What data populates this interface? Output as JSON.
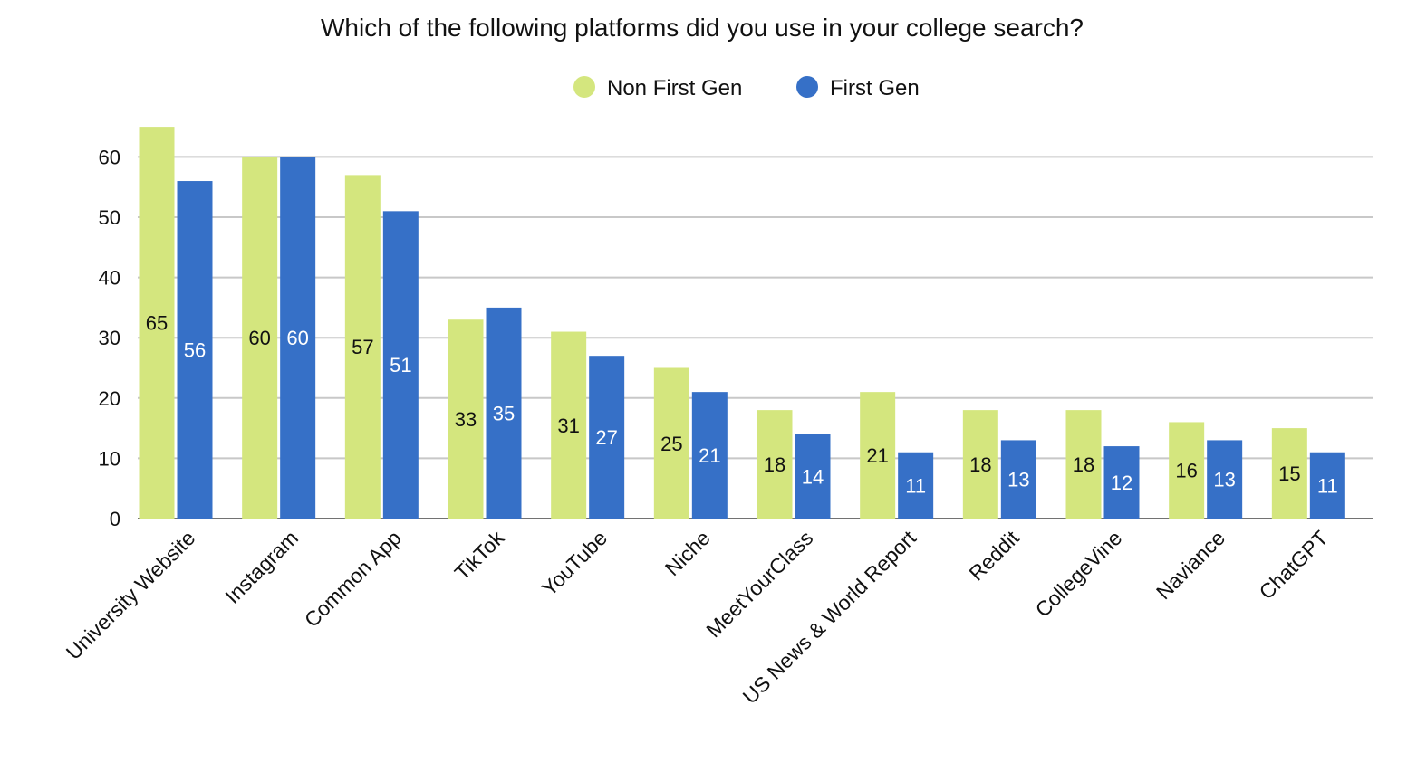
{
  "chart_data": {
    "type": "bar",
    "title": "Which of the following platforms did you use in your college search?",
    "xlabel": "",
    "ylabel": "",
    "ylim": [
      0,
      65
    ],
    "yticks": [
      0,
      10,
      20,
      30,
      40,
      50,
      60
    ],
    "grid": true,
    "legend_position": "top-center",
    "categories": [
      "University Website",
      "Instagram",
      "Common App",
      "TikTok",
      "YouTube",
      "Niche",
      "MeetYourClass",
      "US News & World Report",
      "Reddit",
      "CollegeVine",
      "Naviance",
      "ChatGPT"
    ],
    "series": [
      {
        "name": "Non First Gen",
        "color": "#d4e67e",
        "label_color": "#111111",
        "values": [
          65,
          60,
          57,
          33,
          31,
          25,
          18,
          21,
          18,
          18,
          16,
          15
        ]
      },
      {
        "name": "First Gen",
        "color": "#3670c7",
        "label_color": "#ffffff",
        "values": [
          56,
          60,
          51,
          35,
          27,
          21,
          14,
          11,
          13,
          12,
          13,
          11
        ]
      }
    ]
  }
}
